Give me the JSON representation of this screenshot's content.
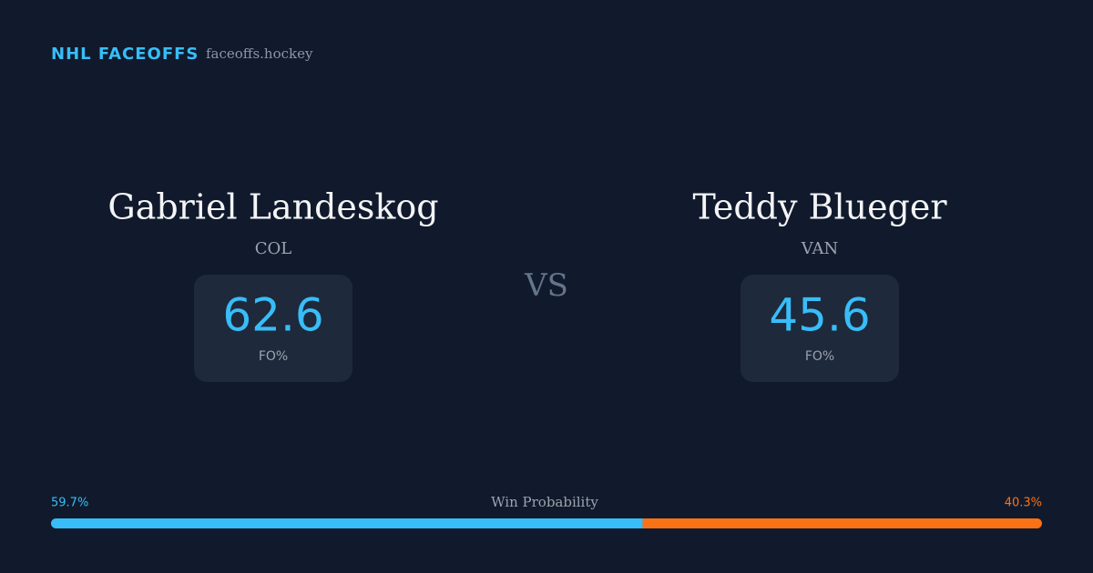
{
  "header": {
    "brand": "NHL FACEOFFS",
    "site": "faceoffs.hockey"
  },
  "players": [
    {
      "name": "Gabriel Landeskog",
      "team": "COL",
      "fo_value": 62.6,
      "fo_label": "FO%"
    },
    {
      "name": "Teddy Blueger",
      "team": "VAN",
      "fo_value": 45.6,
      "fo_label": "FO%"
    }
  ],
  "vs": "VS",
  "win_probability": {
    "label": "Win Probability",
    "home": {
      "value": 59.7,
      "label": "59.7%",
      "color": "#38bdf8"
    },
    "away": {
      "value": 40.3,
      "label": "40.3%",
      "color": "#f97316"
    }
  }
}
